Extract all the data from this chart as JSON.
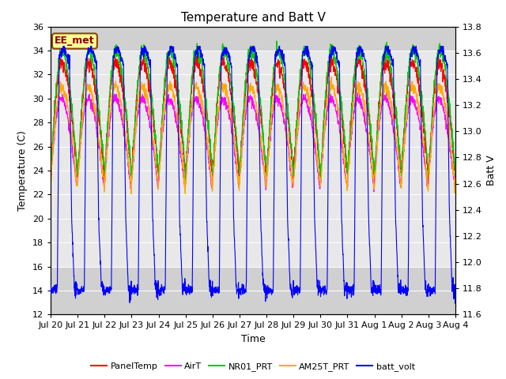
{
  "title": "Temperature and Batt V",
  "xlabel": "Time",
  "ylabel_left": "Temperature (C)",
  "ylabel_right": "Batt V",
  "annotation": "EE_met",
  "ylim_left": [
    12,
    36
  ],
  "ylim_right": [
    11.6,
    13.8
  ],
  "yticks_left": [
    12,
    14,
    16,
    18,
    20,
    22,
    24,
    26,
    28,
    30,
    32,
    34,
    36
  ],
  "yticks_right": [
    11.6,
    11.8,
    12.0,
    12.2,
    12.4,
    12.6,
    12.8,
    13.0,
    13.2,
    13.4,
    13.6,
    13.8
  ],
  "n_days": 15,
  "xtick_labels": [
    "Jul 20",
    "Jul 21",
    "Jul 22",
    "Jul 23",
    "Jul 24",
    "Jul 25",
    "Jul 26",
    "Jul 27",
    "Jul 28",
    "Jul 29",
    "Jul 30",
    "Jul 31",
    "Aug 1",
    "Aug 2",
    "Aug 3",
    "Aug 4"
  ],
  "series": {
    "PanelTemp": {
      "color": "#ff0000",
      "linewidth": 0.8
    },
    "AirT": {
      "color": "#ff00ff",
      "linewidth": 0.8
    },
    "NR01_PRT": {
      "color": "#00cc00",
      "linewidth": 0.8
    },
    "AM25T_PRT": {
      "color": "#ffaa00",
      "linewidth": 0.8
    },
    "batt_volt": {
      "color": "#0000ff",
      "linewidth": 0.8
    }
  },
  "plot_bg_color": "#e8e8e8",
  "band_hi_color": "#d0d0d0",
  "band_lo_color": "#d0d0d0",
  "grid_color": "#ffffff",
  "title_fontsize": 11,
  "axis_label_fontsize": 9,
  "tick_fontsize": 8,
  "legend_fontsize": 8,
  "figwidth": 6.4,
  "figheight": 4.8,
  "dpi": 100
}
